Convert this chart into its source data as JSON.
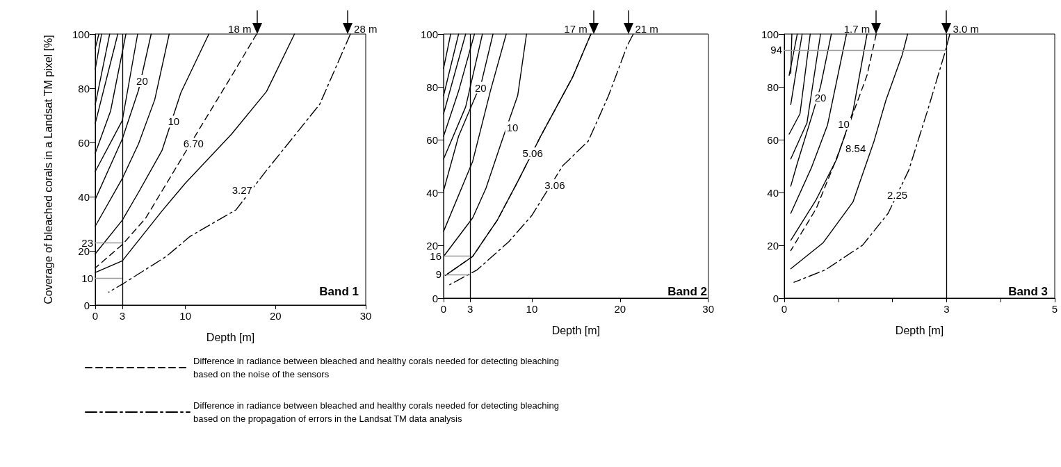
{
  "chart_data": [
    {
      "type": "line",
      "xlabel": "Depth [m]",
      "ylabel": "Coverage of bleached corals in a Landsat TM pixel [%]",
      "xlim": [
        0,
        30
      ],
      "ylim": [
        0,
        100
      ],
      "xticks": [
        0,
        3,
        10,
        20,
        30
      ],
      "yticks": [
        0,
        20,
        40,
        60,
        80,
        100
      ],
      "grid": false,
      "marker": "none",
      "line_style": "solid",
      "legend": "bottom",
      "series": [
        {
          "color": "#000000",
          "x": [
            0.4,
            0
          ],
          "values": [
            100,
            94.7
          ]
        },
        {
          "color": "#000000",
          "x": [
            0.7,
            0
          ],
          "values": [
            100,
            87
          ]
        },
        {
          "color": "#000000",
          "x": [
            1.6,
            0
          ],
          "values": [
            100,
            74
          ]
        },
        {
          "color": "#000000",
          "x": [
            2.5,
            0
          ],
          "values": [
            100,
            67
          ]
        },
        {
          "color": "#000000",
          "x": [
            3.4,
            1.7,
            0
          ],
          "values": [
            100,
            71.6,
            56
          ]
        },
        {
          "color": "#000000",
          "x": [
            4.7,
            3.0,
            0
          ],
          "values": [
            100,
            68.1,
            49.3
          ]
        },
        {
          "color": "#000000",
          "x": [
            6.2,
            4.8,
            3.0,
            0
          ],
          "values": [
            100,
            79.3,
            61.3,
            39.0
          ]
        },
        {
          "color": "#000000",
          "x": [
            8.2,
            6.6,
            4.8,
            3.0,
            0
          ],
          "values": [
            100,
            75.8,
            59.5,
            46.7,
            29.1
          ]
        },
        {
          "color": "#000000",
          "x": [
            12.6,
            9.5,
            7.4,
            4.8,
            3.0,
            0
          ],
          "values": [
            100,
            78.4,
            57.0,
            41.6,
            31.3,
            18.9
          ]
        },
        {
          "color": "#000000",
          "x": [
            22.1,
            19.0,
            15.1,
            10.0,
            7.4,
            3.0,
            0
          ],
          "values": [
            100,
            78.8,
            63.0,
            45,
            34.7,
            16.3,
            12.0
          ]
        },
        {
          "name": "Difference in radiance between bleached and healthy corals needed for detecting bleaching based on the noise of the sensors",
          "color": "#000000",
          "line_style": "dashed",
          "x": [
            17.9,
            15.1,
            11.5,
            8.4,
            5.6,
            3.0,
            0
          ],
          "values": [
            100,
            84.4,
            64.7,
            47.6,
            32.1,
            22.3,
            13.7
          ]
        },
        {
          "name": "Difference in radiance between bleached and healthy corals needed for detecting bleaching based on the propagation of errors in the Landsat TM data analysis",
          "color": "#000000",
          "line_style": "dashdot",
          "x": [
            28.3,
            24.9,
            19.0,
            15.6,
            10.5,
            7.9,
            3.0,
            1.5
          ],
          "values": [
            100,
            74.1,
            49.7,
            35.1,
            25.3,
            18.0,
            7.7,
            4.8
          ]
        }
      ],
      "ref_lines": [
        {
          "axis": "x",
          "value": 3,
          "color": "#000000"
        },
        {
          "axis": "y",
          "value": 23,
          "label": "23",
          "color": "#999999"
        },
        {
          "axis": "y",
          "value": 10,
          "label": "10",
          "color": "#999999"
        }
      ],
      "annotations": [
        "Band 1",
        {
          "text": "18 m",
          "x": 18,
          "y": 100
        },
        {
          "text": "28 m",
          "x": 28,
          "y": 100
        },
        {
          "text": "20",
          "x": 5.2,
          "y": 82.7
        },
        {
          "text": "10",
          "x": 8.7,
          "y": 67.7
        },
        {
          "text": "6.70",
          "x": 10.9,
          "y": 59.5
        },
        {
          "text": "3.27",
          "x": 16.3,
          "y": 42.4
        }
      ]
    },
    {
      "type": "line",
      "xlabel": "Depth [m]",
      "xlim": [
        0,
        30
      ],
      "ylim": [
        0,
        100
      ],
      "xticks": [
        0,
        3,
        10,
        20,
        30
      ],
      "yticks": [
        0,
        20,
        40,
        60,
        80,
        100
      ],
      "grid": false,
      "marker": "none",
      "line_style": "solid",
      "series": [
        {
          "color": "#000000",
          "x": [
            0.8,
            0
          ],
          "values": [
            100,
            87
          ]
        },
        {
          "color": "#000000",
          "x": [
            1.7,
            0
          ],
          "values": [
            100,
            76.7
          ]
        },
        {
          "color": "#000000",
          "x": [
            2.5,
            0
          ],
          "values": [
            100,
            69.8
          ]
        },
        {
          "color": "#000000",
          "x": [
            3.5,
            1.7,
            0
          ],
          "values": [
            100,
            78.4,
            61.3
          ]
        },
        {
          "color": "#000000",
          "x": [
            4.4,
            2.5,
            0
          ],
          "values": [
            100,
            72.4,
            52.7
          ]
        },
        {
          "color": "#000000",
          "x": [
            5.6,
            4.3,
            1.7,
            0
          ],
          "values": [
            100,
            81.8,
            61.3,
            40.7
          ]
        },
        {
          "color": "#000000",
          "x": [
            7.1,
            5.3,
            3.3,
            0
          ],
          "values": [
            100,
            78.4,
            51.8,
            25.3
          ]
        },
        {
          "color": "#000000",
          "x": [
            9.4,
            8.4,
            6.6,
            4.8,
            3.3,
            0
          ],
          "values": [
            100,
            76.7,
            59.5,
            41.6,
            30.4,
            15.8
          ]
        },
        {
          "color": "#000000",
          "x": [
            16.7,
            14.6,
            11.0,
            8.4,
            6.1,
            3.3,
            0.2
          ],
          "values": [
            100,
            83.5,
            61.3,
            44.1,
            29.6,
            15.8,
            8.6
          ]
        },
        {
          "color": "#000000",
          "line_style": "dashed",
          "x": [
            16.7,
            14.6,
            11.0,
            8.4,
            6.1,
            3.3,
            0.2
          ],
          "values": [
            100,
            83.5,
            61.3,
            44.1,
            29.6,
            15.8,
            8.6
          ]
        },
        {
          "color": "#000000",
          "line_style": "dashdot",
          "x": [
            21.5,
            20.8,
            18.7,
            16.4,
            13.5,
            10.0,
            7.4,
            3.8,
            0.7
          ],
          "values": [
            100,
            95.5,
            76.7,
            59.5,
            50.1,
            31.3,
            21.4,
            10.7,
            5.1
          ]
        }
      ],
      "ref_lines": [
        {
          "axis": "x",
          "value": 3,
          "color": "#000000"
        },
        {
          "axis": "y",
          "value": 16,
          "label": "16",
          "color": "#999999"
        },
        {
          "axis": "y",
          "value": 9,
          "label": "9",
          "color": "#999999"
        }
      ],
      "annotations": [
        "Band 2",
        {
          "text": "17 m",
          "x": 17,
          "y": 100
        },
        {
          "text": "21 m",
          "x": 21,
          "y": 100
        },
        {
          "text": "20",
          "x": 4.2,
          "y": 79.7
        },
        {
          "text": "10",
          "x": 7.8,
          "y": 64.7
        },
        {
          "text": "5.06",
          "x": 10.1,
          "y": 54.8
        },
        {
          "text": "3.06",
          "x": 12.6,
          "y": 42.8
        }
      ]
    },
    {
      "type": "line",
      "xlabel": "Depth [m]",
      "xlim": [
        0,
        5
      ],
      "ylim": [
        0,
        100
      ],
      "xticks": [
        0,
        {
          "value": 1,
          "label": null
        },
        {
          "value": 2,
          "label": null
        },
        3,
        {
          "value": 4,
          "label": null
        },
        5
      ],
      "yticks": [
        0,
        20,
        40,
        60,
        80,
        100
      ],
      "grid": false,
      "marker": "none",
      "line_style": "solid",
      "series": [
        {
          "color": "#000000",
          "x": [
            0.14,
            0.12
          ],
          "values": [
            100,
            85
          ]
        },
        {
          "color": "#000000",
          "x": [
            0.24,
            0.09
          ],
          "values": [
            100,
            84.4
          ]
        },
        {
          "color": "#000000",
          "x": [
            0.33,
            0.12
          ],
          "values": [
            100,
            73.3
          ]
        },
        {
          "color": "#000000",
          "x": [
            0.48,
            0.29,
            0.09
          ],
          "values": [
            100,
            69.8,
            62.1
          ]
        },
        {
          "color": "#000000",
          "x": [
            0.67,
            0.42,
            0.12
          ],
          "values": [
            100,
            66.4,
            52.7
          ]
        },
        {
          "color": "#000000",
          "x": [
            0.87,
            0.67,
            0.55,
            0.24,
            0.12
          ],
          "values": [
            100,
            80.1,
            71.6,
            51.0,
            42.4
          ]
        },
        {
          "color": "#000000",
          "x": [
            1.15,
            0.8,
            0.5,
            0.12
          ],
          "values": [
            100,
            65.6,
            49.3,
            32.1
          ]
        },
        {
          "color": "#000000",
          "x": [
            1.53,
            1.27,
            0.97,
            0.59,
            0.12
          ],
          "values": [
            100,
            70.7,
            52.7,
            37.3,
            21.9
          ]
        },
        {
          "color": "#000000",
          "x": [
            2.28,
            2.18,
            1.88,
            1.66,
            1.27,
            0.72,
            0.12
          ],
          "values": [
            100,
            92.1,
            75.0,
            59.5,
            36.4,
            21.0,
            11.1
          ]
        },
        {
          "color": "#000000",
          "line_style": "dashed",
          "x": [
            1.7,
            1.53,
            1.27,
            0.93,
            0.59,
            0.12
          ],
          "values": [
            100,
            84.4,
            69.8,
            51.0,
            33.9,
            18.0
          ]
        },
        {
          "color": "#000000",
          "line_style": "dashdot",
          "x": [
            3.06,
            2.97,
            2.65,
            2.3,
            1.92,
            1.45,
            0.76,
            0.18
          ],
          "values": [
            100,
            93,
            71.1,
            48.4,
            32.1,
            20.1,
            10.7,
            6.0
          ]
        }
      ],
      "ref_lines": [
        {
          "axis": "x",
          "value": 3,
          "color": "#000000"
        },
        {
          "axis": "y",
          "value": 94,
          "label": "94",
          "color": "#999999"
        }
      ],
      "annotations": [
        "Band 3",
        {
          "text": "1.7 m",
          "x": 1.7,
          "y": 100
        },
        {
          "text": "3.0 m",
          "x": 3.0,
          "y": 100
        },
        {
          "text": "20",
          "x": 0.67,
          "y": 75.8
        },
        {
          "text": "10",
          "x": 1.1,
          "y": 66.0
        },
        {
          "text": "8.54",
          "x": 1.32,
          "y": 56.6
        },
        {
          "text": "2.25",
          "x": 2.09,
          "y": 39.0
        }
      ]
    }
  ]
}
